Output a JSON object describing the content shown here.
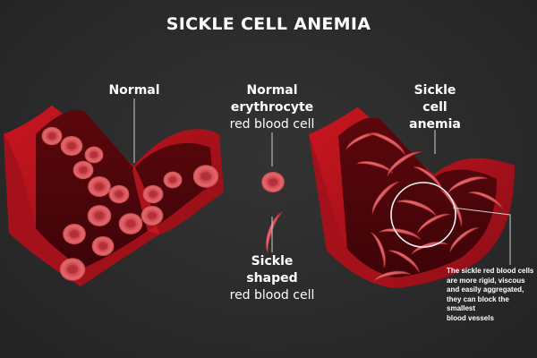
{
  "title": "SICKLE CELL ANEMIA",
  "labels": {
    "normal": "Normal",
    "normal_erythrocyte_line1": "Normal",
    "normal_erythrocyte_line2": "erythrocyte",
    "normal_erythrocyte_line3": "red blood cell",
    "sickle_anemia_line1": "Sickle",
    "sickle_anemia_line2": "cell",
    "sickle_anemia_line3": "anemia",
    "sickle_shaped_line1": "Sickle",
    "sickle_shaped_line2": "shaped",
    "sickle_shaped_line3": "red blood cell"
  },
  "note": {
    "line1": "The sickle red blood cells",
    "line2": "are more rigid, viscous",
    "line3": "and easily aggregated,",
    "line4": "they can block the smallest",
    "line5": "blood vessels"
  },
  "colors": {
    "background": "#2b2b2b",
    "vessel": "#b3121d",
    "vessel_dark": "#6e0a10",
    "cell": "#e0575c",
    "cell_center": "#c8383e",
    "text": "#ffffff",
    "pointer": "#cfcfcf"
  }
}
